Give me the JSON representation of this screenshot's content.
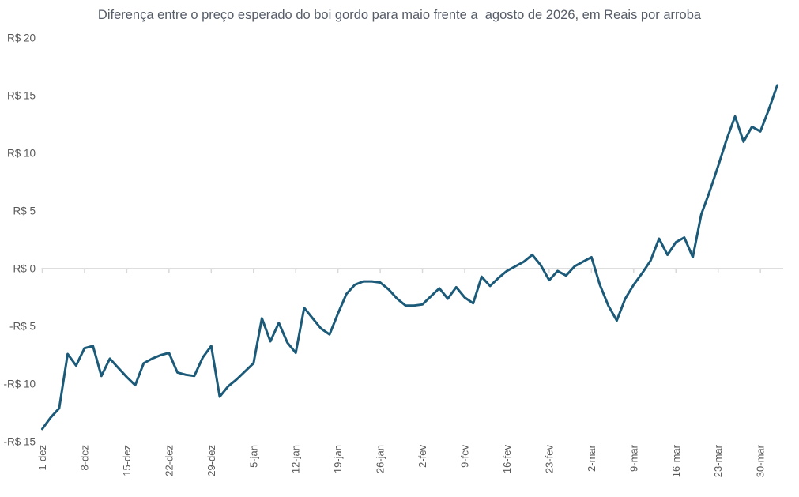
{
  "chart_data": {
    "type": "line",
    "title": "Diferença entre o preço esperado do boi gordo para maio frente a  agosto de 2026, em Reais por arroba",
    "currency_prefix": "R$",
    "x_tick_labels": [
      "1-dez",
      "8-dez",
      "15-dez",
      "22-dez",
      "29-dez",
      "5-jan",
      "12-jan",
      "19-jan",
      "26-jan",
      "2-fev",
      "9-fev",
      "16-fev",
      "23-fev",
      "2-mar",
      "9-mar",
      "16-mar",
      "23-mar",
      "30-mar"
    ],
    "x_tick_every_points": 5,
    "y_ticks": [
      {
        "value": 20,
        "label": "R$ 20"
      },
      {
        "value": 15,
        "label": "R$ 15"
      },
      {
        "value": 10,
        "label": "R$ 10"
      },
      {
        "value": 5,
        "label": "R$ 5"
      },
      {
        "value": 0,
        "label": "R$ 0"
      },
      {
        "value": -5,
        "label": "-R$ 5"
      },
      {
        "value": -10,
        "label": "-R$ 10"
      },
      {
        "value": -15,
        "label": "-R$ 15"
      }
    ],
    "ylim": [
      -15,
      20
    ],
    "grid": "zero-line-only",
    "legend": "none",
    "values": [
      -13.9,
      -12.9,
      -12.1,
      -7.4,
      -8.4,
      -6.9,
      -6.7,
      -9.3,
      -7.8,
      -8.6,
      -9.4,
      -10.1,
      -8.2,
      -7.8,
      -7.5,
      -7.3,
      -9.0,
      -9.2,
      -9.3,
      -7.7,
      -6.7,
      -11.1,
      -10.2,
      -9.6,
      -8.9,
      -8.2,
      -4.3,
      -6.3,
      -4.7,
      -6.4,
      -7.3,
      -3.4,
      -4.3,
      -5.2,
      -5.7,
      -3.9,
      -2.2,
      -1.4,
      -1.1,
      -1.1,
      -1.2,
      -1.8,
      -2.6,
      -3.2,
      -3.2,
      -3.1,
      -2.4,
      -1.7,
      -2.6,
      -1.6,
      -2.5,
      -3.0,
      -0.7,
      -1.5,
      -0.8,
      -0.2,
      0.2,
      0.6,
      1.2,
      0.3,
      -1.0,
      -0.2,
      -0.6,
      0.2,
      0.6,
      1.0,
      -1.4,
      -3.2,
      -4.5,
      -2.6,
      -1.4,
      -0.4,
      0.7,
      2.6,
      1.2,
      2.3,
      2.7,
      1.0,
      4.7,
      6.7,
      8.9,
      11.2,
      13.2,
      11.0,
      12.3,
      11.9,
      13.8,
      15.9
    ],
    "colors": {
      "line": "#1b5a78",
      "axis_labels": "#595959",
      "zero_line": "#d9d9d9",
      "title": "#565d69",
      "background": "#ffffff"
    }
  }
}
